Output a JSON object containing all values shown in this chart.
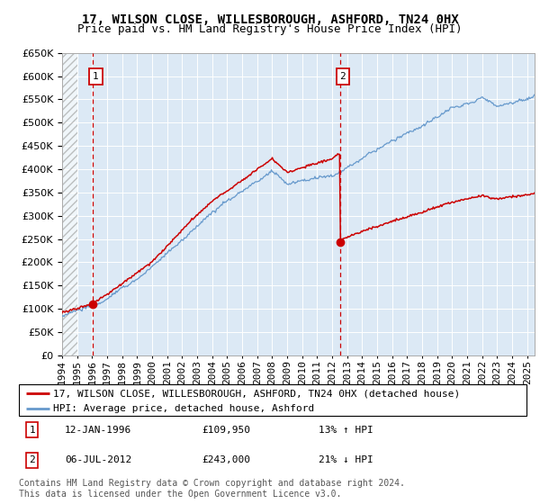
{
  "title": "17, WILSON CLOSE, WILLESBOROUGH, ASHFORD, TN24 0HX",
  "subtitle": "Price paid vs. HM Land Registry's House Price Index (HPI)",
  "ylim": [
    0,
    650000
  ],
  "yticks": [
    0,
    50000,
    100000,
    150000,
    200000,
    250000,
    300000,
    350000,
    400000,
    450000,
    500000,
    550000,
    600000,
    650000
  ],
  "xlim_start": 1994.0,
  "xlim_end": 2025.5,
  "background_color": "#dce9f5",
  "grid_color": "#ffffff",
  "hpi_line_color": "#6699cc",
  "price_line_color": "#cc0000",
  "marker_color": "#cc0000",
  "vline_color": "#cc0000",
  "annotation_box_color": "#cc0000",
  "sale1_date": 1996.04,
  "sale1_price": 109950,
  "sale2_date": 2012.51,
  "sale2_price": 243000,
  "legend_line1": "17, WILSON CLOSE, WILLESBOROUGH, ASHFORD, TN24 0HX (detached house)",
  "legend_line2": "HPI: Average price, detached house, Ashford",
  "footnote": "Contains HM Land Registry data © Crown copyright and database right 2024.\nThis data is licensed under the Open Government Licence v3.0.",
  "title_fontsize": 10,
  "subtitle_fontsize": 9,
  "tick_fontsize": 8,
  "legend_fontsize": 8,
  "footnote_fontsize": 7
}
